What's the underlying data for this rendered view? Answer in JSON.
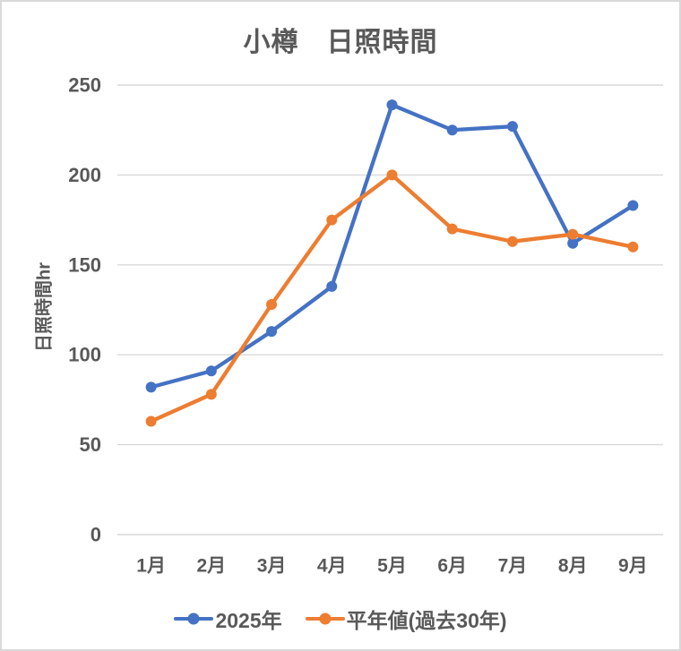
{
  "chart_data": {
    "type": "line",
    "title": "小樽　日照時間",
    "xlabel": "",
    "ylabel": "日照時間hr",
    "categories": [
      "1月",
      "2月",
      "3月",
      "4月",
      "5月",
      "6月",
      "7月",
      "8月",
      "9月"
    ],
    "series": [
      {
        "name": "2025年",
        "color": "#4472C4",
        "values": [
          82,
          91,
          113,
          138,
          239,
          225,
          227,
          162,
          183
        ]
      },
      {
        "name": "平年値(過去30年)",
        "color": "#ED7D31",
        "values": [
          63,
          78,
          128,
          175,
          200,
          170,
          163,
          167,
          160
        ]
      }
    ],
    "ylim": [
      0,
      250
    ],
    "yticks": [
      0,
      50,
      100,
      150,
      200,
      250
    ],
    "grid": true,
    "legend_position": "bottom",
    "marker": "circle",
    "colors": {
      "text": "#595959",
      "gridline": "#D9D9D9",
      "border": "#D9D9D9",
      "background": "#FFFFFF"
    }
  }
}
